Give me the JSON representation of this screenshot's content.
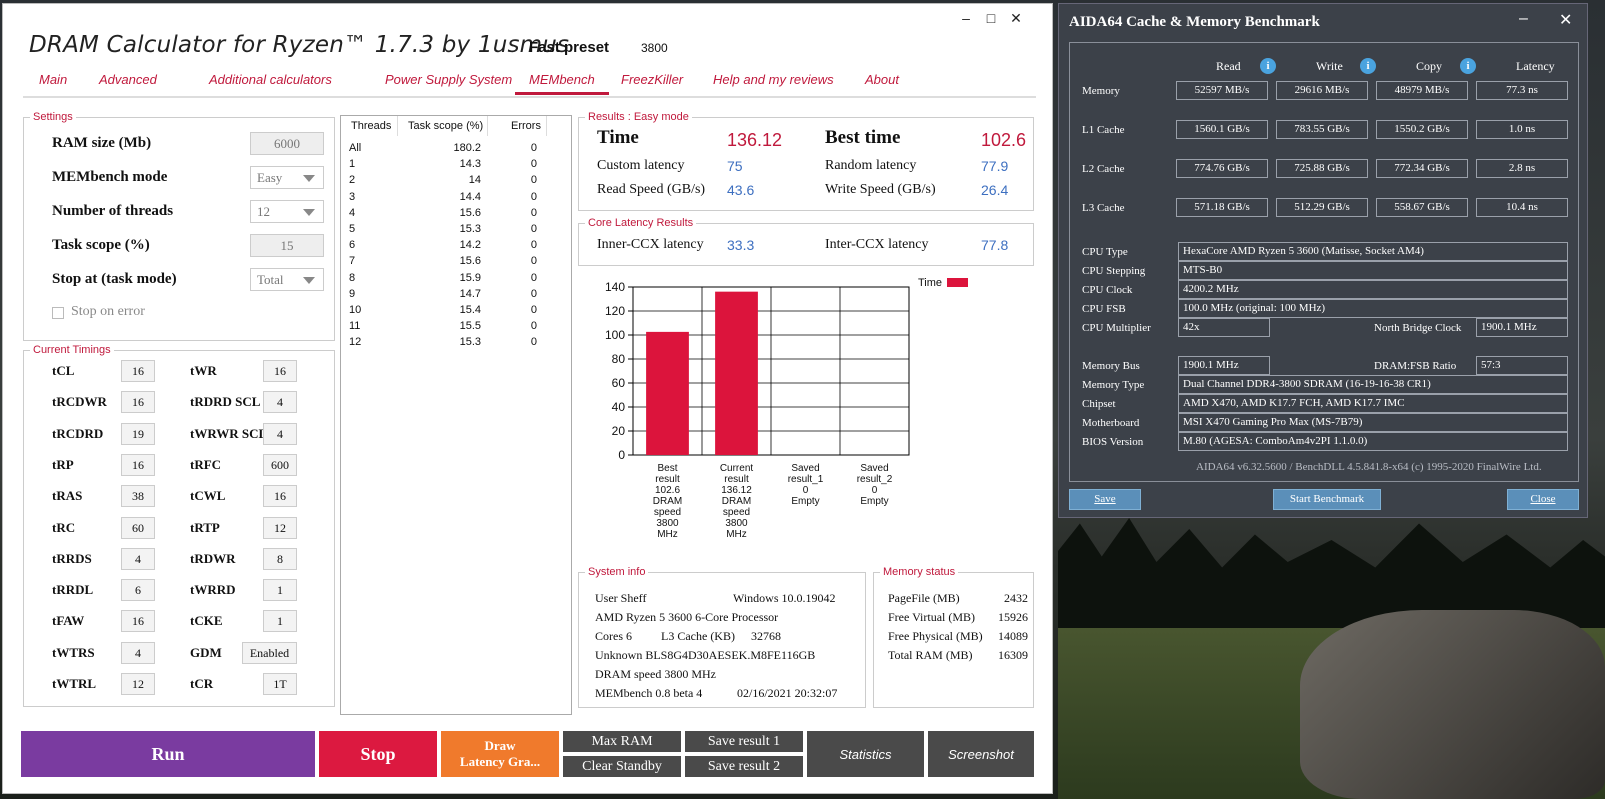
{
  "dram": {
    "title": "DRAM Calculator for Ryzen™ 1.7.3 by 1usmus",
    "fast_preset_label": "Fast preset",
    "fast_preset_value": "3800",
    "menu": [
      "Main",
      "Advanced",
      "Additional calculators",
      "Power Supply System",
      "MEMbench",
      "FreezKiller",
      "Help and my reviews",
      "About"
    ],
    "settings": {
      "title": "Settings",
      "ram_size_label": "RAM size (Mb)",
      "ram_size_value": "6000",
      "mode_label": "MEMbench mode",
      "mode_value": "Easy",
      "threads_label": "Number of threads",
      "threads_value": "12",
      "scope_label": "Task scope (%)",
      "scope_value": "15",
      "stop_label": "Stop at (task mode)",
      "stop_value": "Total",
      "stop_on_error_label": "Stop on error"
    },
    "timings": {
      "title": "Current Timings",
      "left": [
        {
          "label": "tCL",
          "value": "16"
        },
        {
          "label": "tRCDWR",
          "value": "16"
        },
        {
          "label": "tRCDRD",
          "value": "19"
        },
        {
          "label": "tRP",
          "value": "16"
        },
        {
          "label": "tRAS",
          "value": "38"
        },
        {
          "label": "tRC",
          "value": "60"
        },
        {
          "label": "tRRDS",
          "value": "4"
        },
        {
          "label": "tRRDL",
          "value": "6"
        },
        {
          "label": "tFAW",
          "value": "16"
        },
        {
          "label": "tWTRS",
          "value": "4"
        },
        {
          "label": "tWTRL",
          "value": "12"
        }
      ],
      "right": [
        {
          "label": "tWR",
          "value": "16"
        },
        {
          "label": "tRDRD SCL",
          "value": "4"
        },
        {
          "label": "tWRWR SCL",
          "value": "4"
        },
        {
          "label": "tRFC",
          "value": "600"
        },
        {
          "label": "tCWL",
          "value": "16"
        },
        {
          "label": "tRTP",
          "value": "12"
        },
        {
          "label": "tRDWR",
          "value": "8"
        },
        {
          "label": "tWRRD",
          "value": "1"
        },
        {
          "label": "tCKE",
          "value": "1"
        },
        {
          "label": "GDM",
          "value": "Enabled"
        },
        {
          "label": "tCR",
          "value": "1T"
        }
      ]
    },
    "threads_table": {
      "headers": [
        "Threads",
        "Task scope (%)",
        "Errors"
      ],
      "rows": [
        [
          "All",
          "180.2",
          "0"
        ],
        [
          "1",
          "14.3",
          "0"
        ],
        [
          "2",
          "14",
          "0"
        ],
        [
          "3",
          "14.4",
          "0"
        ],
        [
          "4",
          "15.6",
          "0"
        ],
        [
          "5",
          "15.3",
          "0"
        ],
        [
          "6",
          "14.2",
          "0"
        ],
        [
          "7",
          "15.6",
          "0"
        ],
        [
          "8",
          "15.9",
          "0"
        ],
        [
          "9",
          "14.7",
          "0"
        ],
        [
          "10",
          "15.4",
          "0"
        ],
        [
          "11",
          "15.5",
          "0"
        ],
        [
          "12",
          "15.3",
          "0"
        ]
      ]
    },
    "results": {
      "title": "Results : Easy mode",
      "time_label": "Time",
      "time_value": "136.12",
      "best_label": "Best time",
      "best_value": "102.6",
      "custom_latency_label": "Custom latency",
      "custom_latency_value": "75",
      "random_latency_label": "Random latency",
      "random_latency_value": "77.9",
      "read_label": "Read Speed (GB/s)",
      "read_value": "43.6",
      "write_label": "Write Speed (GB/s)",
      "write_value": "26.4"
    },
    "core_latency": {
      "title": "Core Latency Results",
      "inner_label": "Inner-CCX latency",
      "inner_value": "33.3",
      "inter_label": "Inter-CCX latency",
      "inter_value": "77.8"
    },
    "system_info": {
      "title": "System info",
      "user": "User Sheff",
      "os": "Windows 10.0.19042",
      "cpu": "AMD Ryzen 5 3600 6-Core Processor",
      "cores": "Cores 6",
      "l3_label": "L3 Cache (KB)",
      "l3_value": "32768",
      "ram_module": "Unknown BLS8G4D30AESEK.M8FE116GB",
      "dram_speed": "DRAM speed 3800 MHz",
      "membench": "MEMbench 0.8 beta 4",
      "timestamp": "02/16/2021 20:32:07"
    },
    "memory_status": {
      "title": "Memory status",
      "rows": [
        {
          "label": "PageFile (MB)",
          "value": "2432"
        },
        {
          "label": "Free Virtual (MB)",
          "value": "15926"
        },
        {
          "label": "Free Physical (MB)",
          "value": "14089"
        },
        {
          "label": "Total RAM (MB)",
          "value": "16309"
        }
      ]
    },
    "buttons": {
      "run": "Run",
      "stop": "Stop",
      "draw_line1": "Draw",
      "draw_line2": "Latency Gra...",
      "max_ram": "Max RAM",
      "clear_standby": "Clear Standby",
      "save1": "Save result 1",
      "save2": "Save result 2",
      "statistics": "Statistics",
      "screenshot": "Screenshot"
    },
    "colors": {
      "accent": "#c0193c",
      "run": "#7a3ba0",
      "stop": "#dc1940",
      "draw": "#f07a2c",
      "grey": "#4a4a4a",
      "value_blue": "#3d6fc0"
    }
  },
  "chart_data": {
    "type": "bar",
    "categories": [
      "Best result 102.6 DRAM speed 3800 MHz",
      "Current result 136.12 DRAM speed 3800 MHz",
      "Saved result_1 0 Empty",
      "Saved result_2 0 Empty"
    ],
    "category_lines": [
      [
        "Best",
        "result",
        "102.6",
        "DRAM",
        "speed",
        "3800",
        "MHz"
      ],
      [
        "Current",
        "result",
        "136.12",
        "DRAM",
        "speed",
        "3800",
        "MHz"
      ],
      [
        "Saved",
        "result_1",
        "0",
        "Empty"
      ],
      [
        "Saved",
        "result_2",
        "0",
        "Empty"
      ]
    ],
    "series": [
      {
        "name": "Time",
        "values": [
          102.6,
          136.12,
          0,
          0
        ]
      }
    ],
    "ylim": [
      0,
      140
    ],
    "yticks": [
      "0",
      "20",
      "40",
      "60",
      "80",
      "100",
      "120",
      "140"
    ],
    "ytick_values": [
      0,
      20,
      40,
      60,
      80,
      100,
      120,
      140
    ],
    "grid": true,
    "legend": "top-right",
    "bar_color": "#dc143c"
  },
  "aida": {
    "title": "AIDA64 Cache & Memory Benchmark",
    "headers": [
      "Read",
      "Write",
      "Copy",
      "Latency"
    ],
    "bench_rows": [
      {
        "label": "Memory",
        "read": "52597 MB/s",
        "write": "29616 MB/s",
        "copy": "48979 MB/s",
        "latency": "77.3 ns"
      },
      {
        "label": "L1 Cache",
        "read": "1560.1 GB/s",
        "write": "783.55 GB/s",
        "copy": "1550.2 GB/s",
        "latency": "1.0 ns"
      },
      {
        "label": "L2 Cache",
        "read": "774.76 GB/s",
        "write": "725.88 GB/s",
        "copy": "772.34 GB/s",
        "latency": "2.8 ns"
      },
      {
        "label": "L3 Cache",
        "read": "571.18 GB/s",
        "write": "512.29 GB/s",
        "copy": "558.67 GB/s",
        "latency": "10.4 ns"
      }
    ],
    "cpu_type_label": "CPU Type",
    "cpu_type": "HexaCore AMD Ryzen 5 3600  (Matisse, Socket AM4)",
    "cpu_stepping_label": "CPU Stepping",
    "cpu_stepping": "MTS-B0",
    "cpu_clock_label": "CPU Clock",
    "cpu_clock": "4200.2 MHz",
    "cpu_fsb_label": "CPU FSB",
    "cpu_fsb": "100.0 MHz  (original: 100 MHz)",
    "cpu_mult_label": "CPU Multiplier",
    "cpu_mult": "42x",
    "nb_clock_label": "North Bridge Clock",
    "nb_clock": "1900.1 MHz",
    "mem_bus_label": "Memory Bus",
    "mem_bus": "1900.1 MHz",
    "dram_fsb_label": "DRAM:FSB Ratio",
    "dram_fsb": "57:3",
    "mem_type_label": "Memory Type",
    "mem_type": "Dual Channel DDR4-3800 SDRAM  (16-19-16-38 CR1)",
    "chipset_label": "Chipset",
    "chipset": "AMD X470, AMD K17.7 FCH, AMD K17.7 IMC",
    "mobo_label": "Motherboard",
    "mobo": "MSI X470 Gaming Pro Max (MS-7B79)",
    "bios_label": "BIOS Version",
    "bios": "M.80  (AGESA: ComboAm4v2PI 1.1.0.0)",
    "footer": "AIDA64 v6.32.5600 / BenchDLL 4.5.841.8-x64  (c) 1995-2020 FinalWire Ltd.",
    "save_button": "Save",
    "start_button": "Start Benchmark",
    "close_button": "Close"
  }
}
